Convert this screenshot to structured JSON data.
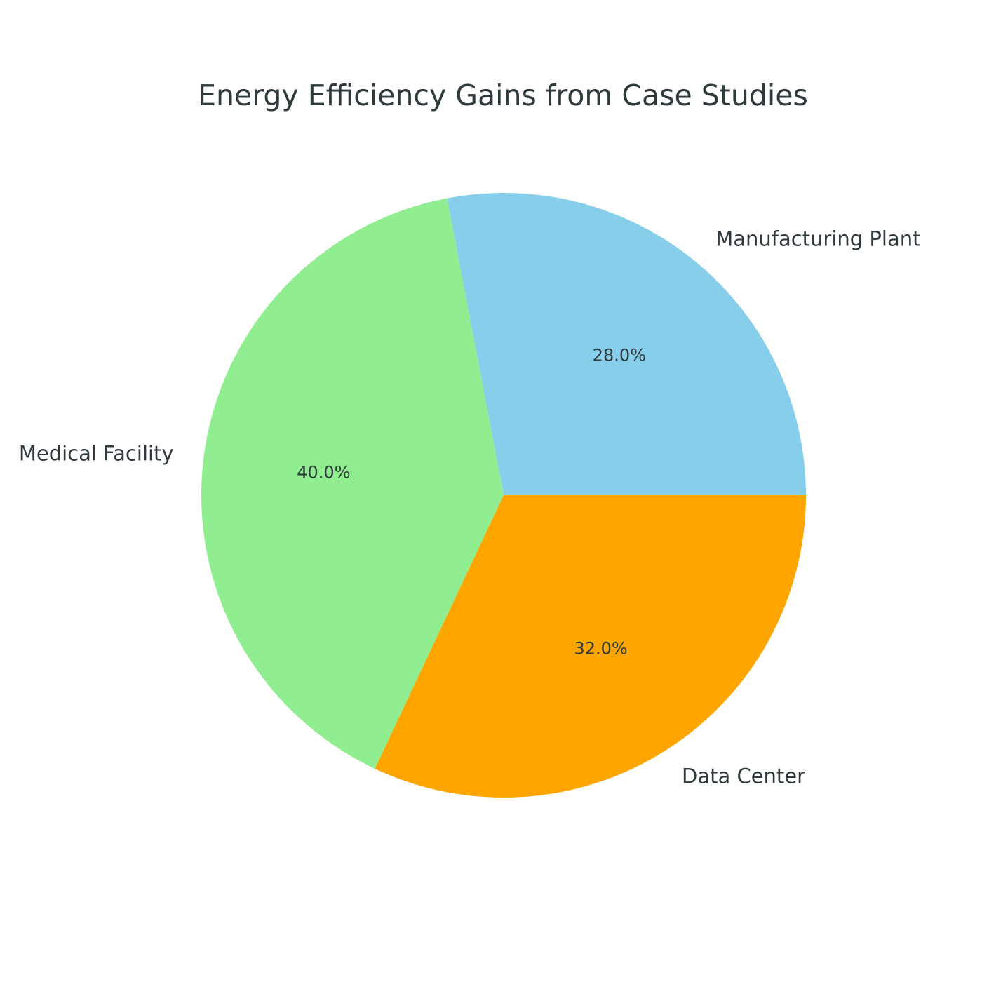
{
  "chart_data": {
    "type": "pie",
    "title": "Energy Efficiency Gains from Case Studies",
    "start_angle": 0,
    "direction": "counterclockwise",
    "slices": [
      {
        "label": "Manufacturing Plant",
        "value": 28.0,
        "pct_label": "28.0%",
        "color": "#87ceeb"
      },
      {
        "label": "Medical Facility",
        "value": 40.0,
        "pct_label": "40.0%",
        "color": "#90ee90"
      },
      {
        "label": "Data Center",
        "value": 32.0,
        "pct_label": "32.0%",
        "color": "#ffa500"
      }
    ]
  }
}
